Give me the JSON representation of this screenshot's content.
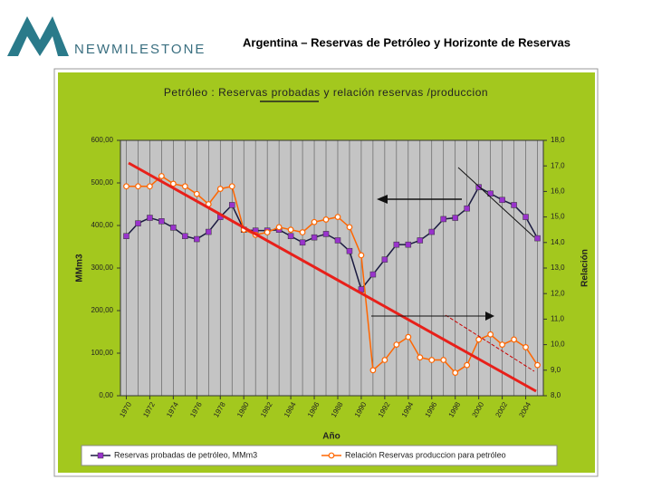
{
  "header": {
    "logo": "NEWMILESTONE",
    "title": "Argentina – Reservas de Petróleo y Horizonte de Reservas"
  },
  "chart_data": {
    "type": "line",
    "title": "Petróleo : Reservas probadas y relación reservas /produccion",
    "x_label": "Año",
    "y_label": "MMm3",
    "y2_label": "Relación",
    "x": [
      1970,
      1971,
      1972,
      1973,
      1974,
      1975,
      1976,
      1977,
      1978,
      1979,
      1980,
      1981,
      1982,
      1983,
      1984,
      1985,
      1986,
      1987,
      1988,
      1989,
      1990,
      1991,
      1992,
      1993,
      1994,
      1995,
      1996,
      1997,
      1998,
      1999,
      2000,
      2001,
      2002,
      2003,
      2004,
      2005
    ],
    "xlim": [
      1969.5,
      2005.5
    ],
    "xticks": [
      1970,
      1972,
      1974,
      1976,
      1978,
      1980,
      1982,
      1984,
      1986,
      1988,
      1990,
      1992,
      1994,
      1996,
      1998,
      2000,
      2002,
      2004
    ],
    "ylim": [
      0,
      600
    ],
    "yticks": [
      {
        "value": 0,
        "label": "0,00"
      },
      {
        "value": 100,
        "label": "100,00"
      },
      {
        "value": 200,
        "label": "200,00"
      },
      {
        "value": 300,
        "label": "300,00"
      },
      {
        "value": 400,
        "label": "400,00"
      },
      {
        "value": 500,
        "label": "500,00"
      },
      {
        "value": 600,
        "label": "600,00"
      }
    ],
    "y2lim": [
      8,
      18
    ],
    "y2ticks": [
      {
        "value": 8,
        "label": "8,0"
      },
      {
        "value": 9,
        "label": "9,0"
      },
      {
        "value": 10,
        "label": "10,0"
      },
      {
        "value": 11,
        "label": "11,0"
      },
      {
        "value": 12,
        "label": "12,0"
      },
      {
        "value": 13,
        "label": "13,0"
      },
      {
        "value": 14,
        "label": "14,0"
      },
      {
        "value": 15,
        "label": "15,0"
      },
      {
        "value": 16,
        "label": "16,0"
      },
      {
        "value": 17,
        "label": "17,0"
      },
      {
        "value": 18,
        "label": "18,0"
      }
    ],
    "grid": true,
    "series": [
      {
        "name": "Reservas probadas de petróleo, MMm3",
        "color": "#9933cc",
        "line_color": "#1a1a40",
        "marker": "square",
        "values": [
          375,
          405,
          418,
          410,
          395,
          375,
          368,
          385,
          420,
          448,
          390,
          388,
          388,
          390,
          375,
          360,
          372,
          380,
          365,
          340,
          250,
          285,
          320,
          355,
          355,
          365,
          385,
          415,
          418,
          440,
          490,
          475,
          460,
          448,
          420,
          370
        ]
      },
      {
        "name": "Relación Reservas produccion para petróleo",
        "color": "#ff6600",
        "line_color": "#ff6600",
        "marker": "circle",
        "axis": "y2",
        "values": [
          16.2,
          16.2,
          16.2,
          16.6,
          16.3,
          16.2,
          15.9,
          15.5,
          16.1,
          16.2,
          14.5,
          14.3,
          14.4,
          14.6,
          14.5,
          14.4,
          14.8,
          14.9,
          15.0,
          14.6,
          13.5,
          9.0,
          9.4,
          10.0,
          10.3,
          9.5,
          9.4,
          9.4,
          8.9,
          9.2,
          10.2,
          10.4,
          10.0,
          10.2,
          9.9,
          9.2
        ]
      }
    ]
  }
}
